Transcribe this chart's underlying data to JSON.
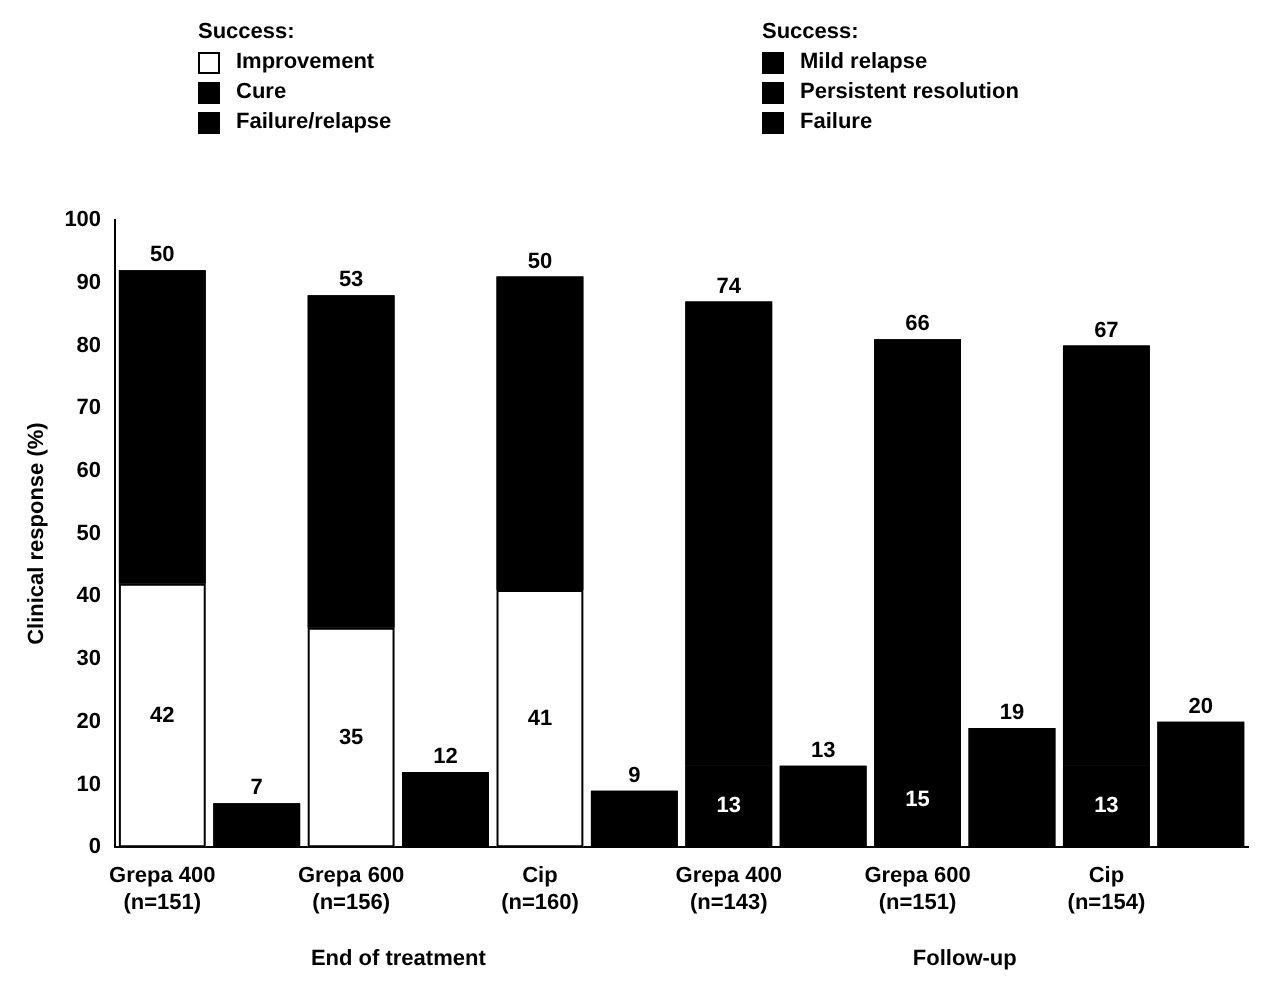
{
  "chart_data": {
    "type": "bar",
    "stacked": true,
    "ylabel": "Clinical response (%)",
    "legend_title": "Success:",
    "categories": [
      "Grepa 400\n(n=151)",
      null,
      "Grepa 600\n(n=156)",
      null,
      "Cip\n(n=160)",
      null,
      "Grepa 400\n(n=143)",
      null,
      "Grepa 600\n(n=151)",
      null,
      "Cip\n(n=154)",
      null
    ],
    "series": [
      {
        "name": "Improvement",
        "color": "#ffffff",
        "values": [
          42,
          null,
          35,
          null,
          41,
          null,
          null,
          null,
          null,
          null,
          null,
          null
        ]
      },
      {
        "name": "Cure",
        "color": "#000000",
        "values": [
          50,
          null,
          53,
          null,
          50,
          null,
          null,
          null,
          null,
          null,
          null,
          null
        ]
      },
      {
        "name": "Failure/relapse",
        "color": "#000000",
        "values": [
          null,
          7,
          null,
          12,
          null,
          9,
          null,
          null,
          null,
          null,
          null,
          null
        ]
      },
      {
        "name": "Mild relapse",
        "color": "#000000",
        "values": [
          null,
          null,
          null,
          null,
          null,
          null,
          13,
          null,
          15,
          null,
          13,
          null
        ]
      },
      {
        "name": "Persistent resolution",
        "color": "#000000",
        "values": [
          null,
          null,
          null,
          null,
          null,
          null,
          74,
          null,
          66,
          null,
          67,
          null
        ]
      },
      {
        "name": "Failure",
        "color": "#000000",
        "values": [
          null,
          null,
          null,
          null,
          null,
          null,
          null,
          13,
          null,
          19,
          null,
          20
        ]
      }
    ],
    "ylim": [
      0,
      100
    ],
    "yticks": [
      0,
      10,
      20,
      30,
      40,
      50,
      60,
      70,
      80,
      90,
      100
    ],
    "grid": false,
    "legend": "top",
    "data_labels": true,
    "annotations": [
      "End of treatment",
      "Follow-up"
    ]
  }
}
